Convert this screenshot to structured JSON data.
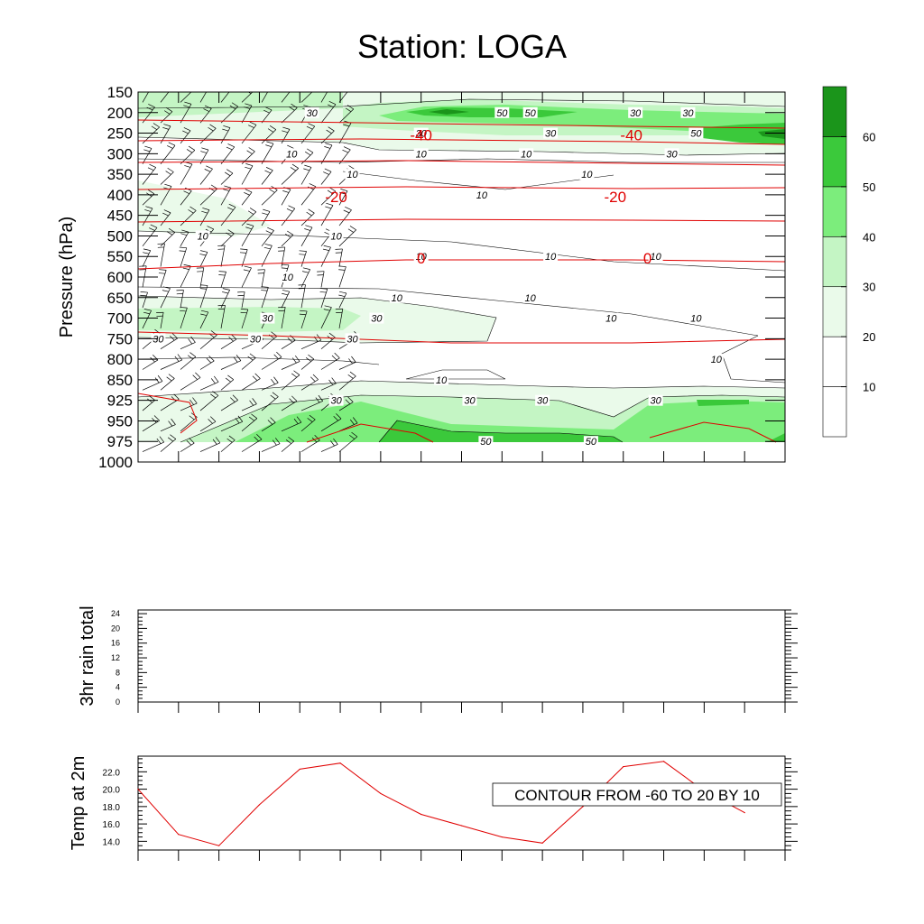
{
  "title": "Station: LOGA",
  "colors": {
    "temp_line": "#e00000",
    "speed_contour": "#000000",
    "fill_levels": [
      "#ffffff",
      "#ffffff",
      "#eafaea",
      "#c4f5c4",
      "#7ced7c",
      "#3bc93b",
      "#1b951b"
    ]
  },
  "chart_data": [
    {
      "type": "contour",
      "name": "cross-section",
      "ylabel": "Pressure (hPa)",
      "y_ticks": [
        150,
        200,
        250,
        300,
        350,
        400,
        450,
        500,
        550,
        600,
        650,
        700,
        750,
        800,
        850,
        925,
        950,
        975,
        1000
      ],
      "ylim": [
        150,
        1000
      ],
      "y_scale": "category",
      "x_tick_count": 17,
      "legend": {
        "placement": "right",
        "levels": [
          "10",
          "20",
          "30",
          "40",
          "50",
          "60"
        ]
      },
      "speed_contour_labels": [
        {
          "text": "30",
          "x": 4.3,
          "level": 200
        },
        {
          "text": "50",
          "x": 9.0,
          "level": 200
        },
        {
          "text": "50",
          "x": 9.7,
          "level": 200
        },
        {
          "text": "30",
          "x": 12.3,
          "level": 200
        },
        {
          "text": "30",
          "x": 13.6,
          "level": 200
        },
        {
          "text": "50",
          "x": 13.8,
          "level": 250
        },
        {
          "text": "30",
          "x": 7.0,
          "level": 250
        },
        {
          "text": "30",
          "x": 10.2,
          "level": 250
        },
        {
          "text": "10",
          "x": 3.8,
          "level": 300
        },
        {
          "text": "10",
          "x": 7.0,
          "level": 300
        },
        {
          "text": "30",
          "x": 13.2,
          "level": 300
        },
        {
          "text": "10",
          "x": 9.6,
          "level": 300
        },
        {
          "text": "10",
          "x": 5.3,
          "level": 350
        },
        {
          "text": "10",
          "x": 8.5,
          "level": 400
        },
        {
          "text": "10",
          "x": 11.1,
          "level": 350
        },
        {
          "text": "10",
          "x": 1.6,
          "level": 500
        },
        {
          "text": "10",
          "x": 4.9,
          "level": 500
        },
        {
          "text": "10",
          "x": 7.0,
          "level": 550
        },
        {
          "text": "10",
          "x": 10.2,
          "level": 550
        },
        {
          "text": "10",
          "x": 12.8,
          "level": 550
        },
        {
          "text": "10",
          "x": 3.7,
          "level": 600
        },
        {
          "text": "10",
          "x": 6.4,
          "level": 650
        },
        {
          "text": "10",
          "x": 9.7,
          "level": 650
        },
        {
          "text": "10",
          "x": 11.7,
          "level": 700
        },
        {
          "text": "10",
          "x": 13.8,
          "level": 700
        },
        {
          "text": "30",
          "x": 3.2,
          "level": 700
        },
        {
          "text": "30",
          "x": 5.9,
          "level": 700
        },
        {
          "text": "30",
          "x": 0.5,
          "level": 750
        },
        {
          "text": "30",
          "x": 2.9,
          "level": 750
        },
        {
          "text": "30",
          "x": 5.3,
          "level": 750
        },
        {
          "text": "10",
          "x": 14.3,
          "level": 800
        },
        {
          "text": "10",
          "x": 7.5,
          "level": 850
        },
        {
          "text": "30",
          "x": 4.9,
          "level": 925
        },
        {
          "text": "30",
          "x": 8.2,
          "level": 925
        },
        {
          "text": "30",
          "x": 10.0,
          "level": 925
        },
        {
          "text": "30",
          "x": 12.8,
          "level": 925
        },
        {
          "text": "50",
          "x": 8.6,
          "level": 975
        },
        {
          "text": "50",
          "x": 11.2,
          "level": 975
        }
      ],
      "temperature_contour_labels": [
        {
          "text": "-40",
          "x": 7.0,
          "level": 250
        },
        {
          "text": "-40",
          "x": 12.2,
          "level": 250
        },
        {
          "text": "-20",
          "x": 4.9,
          "level": 400
        },
        {
          "text": "-20",
          "x": 11.8,
          "level": 400
        },
        {
          "text": "0",
          "x": 7.0,
          "level": 550
        },
        {
          "text": "0",
          "x": 12.6,
          "level": 550
        }
      ]
    },
    {
      "type": "line",
      "name": "3hr rain total",
      "ylabel": "3hr rain total",
      "y_ticks": [
        0,
        4,
        8,
        12,
        16,
        20,
        24
      ],
      "ylim": [
        0,
        25
      ],
      "x_tick_count": 17,
      "values": []
    },
    {
      "type": "line",
      "name": "Temp at 2m",
      "ylabel": "Temp at 2m",
      "y_ticks": [
        "14.0",
        "16.0",
        "18.0",
        "20.0",
        "22.0"
      ],
      "ylim": [
        13.0,
        23.8
      ],
      "x_tick_count": 17,
      "x": [
        0,
        1,
        2,
        3,
        4,
        5,
        6,
        7,
        8,
        9,
        10,
        11,
        12,
        13,
        14,
        15
      ],
      "values": [
        20.0,
        14.8,
        13.5,
        18.2,
        22.3,
        23.0,
        19.5,
        17.1,
        15.8,
        14.5,
        13.8,
        18.0,
        22.6,
        23.2,
        19.8,
        17.3
      ],
      "annotation": "CONTOUR FROM -60 TO 20 BY 10"
    }
  ]
}
